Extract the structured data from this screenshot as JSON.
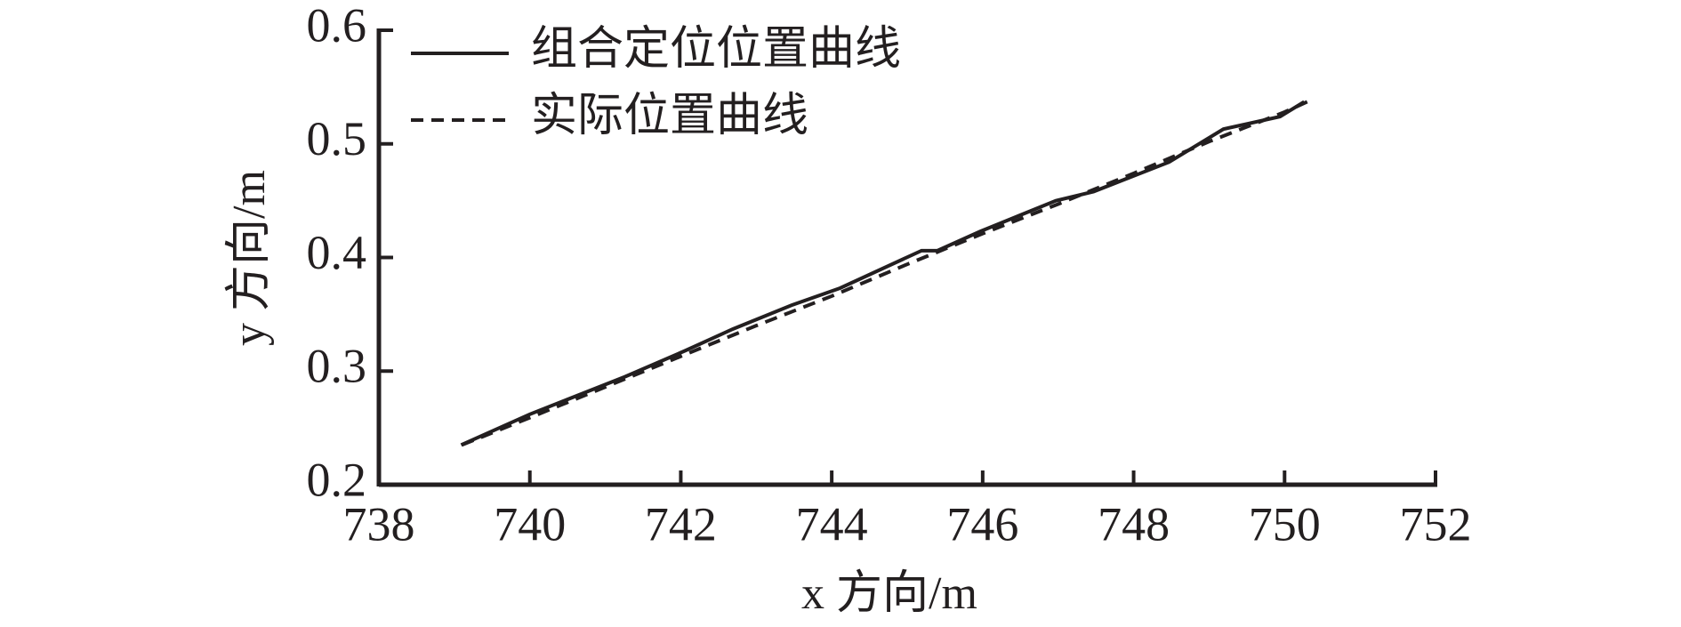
{
  "chart_data": {
    "type": "line",
    "xlabel": "x 方向/m",
    "ylabel": "y 方向/m",
    "xlim": [
      738,
      752
    ],
    "xticks": [
      738,
      740,
      742,
      744,
      746,
      748,
      750,
      752
    ],
    "ylim": [
      0.2,
      0.6
    ],
    "yticks": [
      0.2,
      0.3,
      0.4,
      0.5,
      0.6
    ],
    "legend": "upper left",
    "series": [
      {
        "name": "组合定位位置曲线",
        "color": "#231f20",
        "style": "solid",
        "x": [
          739.09,
          740.0,
          741.26,
          742.06,
          742.69,
          743.47,
          744.11,
          745.19,
          745.4,
          745.97,
          746.97,
          747.47,
          748.47,
          749.19,
          749.94,
          750.26
        ],
        "values": [
          0.235,
          0.262,
          0.295,
          0.318,
          0.337,
          0.358,
          0.373,
          0.406,
          0.406,
          0.423,
          0.45,
          0.458,
          0.484,
          0.513,
          0.524,
          0.537
        ]
      },
      {
        "name": "实际位置曲线",
        "color": "#231f20",
        "style": "dashed",
        "x": [
          739.1,
          740,
          741,
          742,
          743,
          744,
          745,
          746,
          747,
          748,
          749,
          750,
          750.3
        ],
        "values": [
          0.235,
          0.259,
          0.286,
          0.313,
          0.34,
          0.366,
          0.394,
          0.421,
          0.447,
          0.474,
          0.502,
          0.528,
          0.537
        ]
      }
    ]
  }
}
